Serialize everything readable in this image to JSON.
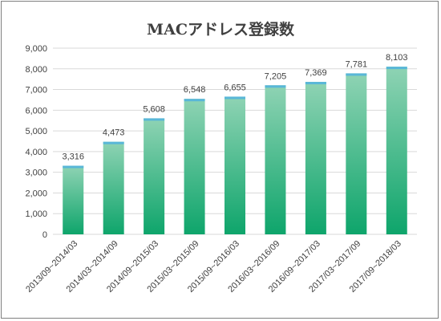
{
  "chart_data": {
    "type": "bar",
    "title": "MACアドレス登録数",
    "categories": [
      "2013/09~2014/03",
      "2014/03~2014/09",
      "2014/09~2015/03",
      "2015/03~2015/09",
      "2015/09~2016/03",
      "2016/03~2016/09",
      "2016/09~2017/03",
      "2017/03~2017/09",
      "2017/09~2018/03"
    ],
    "values": [
      3316,
      4473,
      5608,
      6548,
      6655,
      7205,
      7369,
      7781,
      8103
    ],
    "value_labels": [
      "3,316",
      "4,473",
      "5,608",
      "6,548",
      "6,655",
      "7,205",
      "7,369",
      "7,781",
      "8,103"
    ],
    "ylim": [
      0,
      9000
    ],
    "yticks": [
      0,
      1000,
      2000,
      3000,
      4000,
      5000,
      6000,
      7000,
      8000,
      9000
    ],
    "ytick_labels": [
      "0",
      "1,000",
      "2,000",
      "3,000",
      "4,000",
      "5,000",
      "6,000",
      "7,000",
      "8,000",
      "9,000"
    ],
    "grid": true,
    "legend": "none",
    "colors": {
      "bar_top": "#8fd3b4",
      "bar_bottom": "#0ea56b",
      "bar_cap": "#59b7d8"
    }
  }
}
